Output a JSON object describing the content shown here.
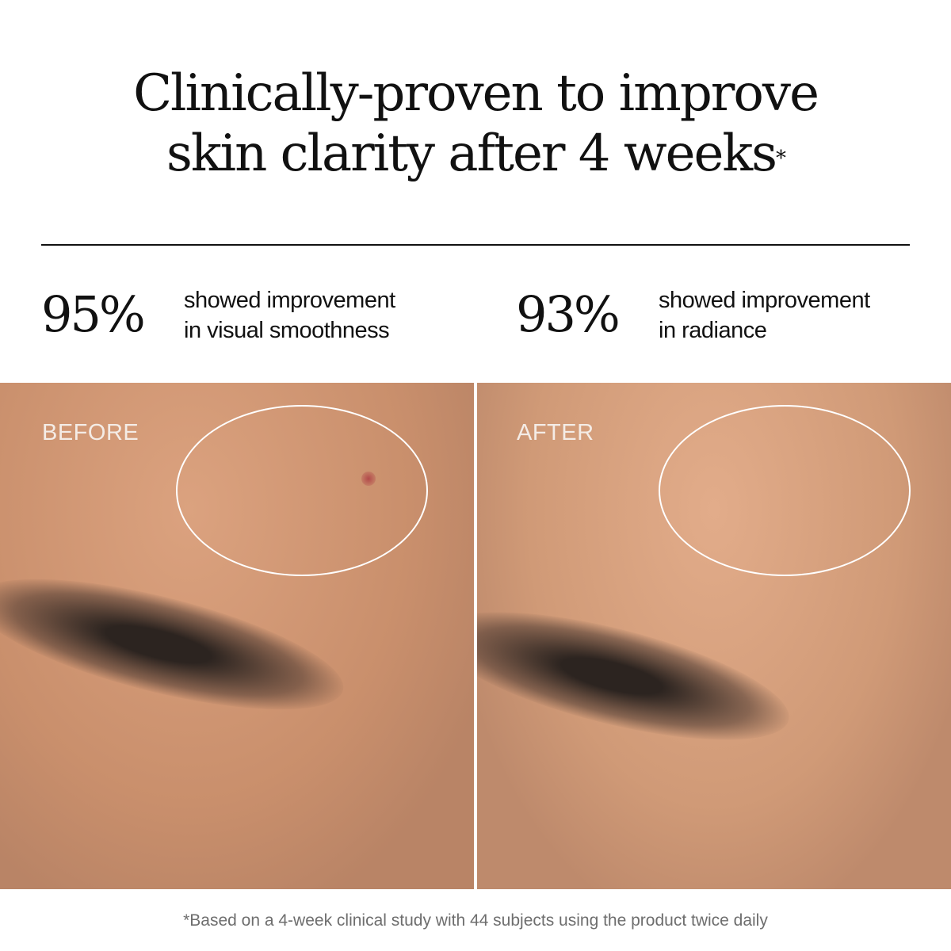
{
  "headline": {
    "line1": "Clinically-proven to improve",
    "line2": "skin clarity after 4 weeks",
    "asterisk": "*"
  },
  "stats": [
    {
      "value": "95%",
      "line1": "showed improvement",
      "line2": "in visual smoothness"
    },
    {
      "value": "93%",
      "line1": "showed improvement",
      "line2": "in radiance"
    }
  ],
  "photos": {
    "before_label": "BEFORE",
    "after_label": "AFTER"
  },
  "footnote": "*Based on a 4-week clinical study with 44 subjects using the product twice daily"
}
